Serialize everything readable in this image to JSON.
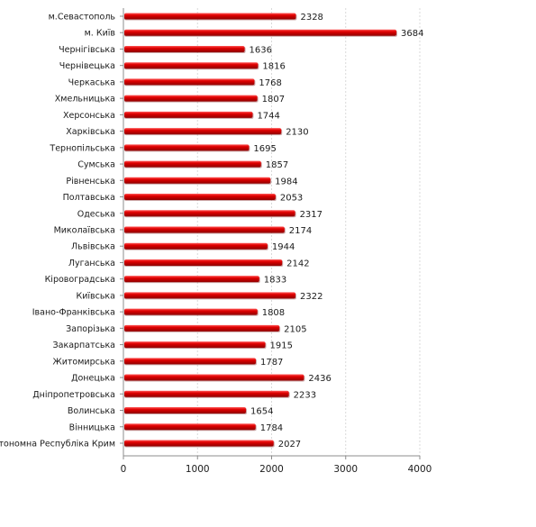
{
  "chart_data": {
    "type": "bar",
    "orientation": "horizontal",
    "categories": [
      "м.Севастополь",
      "м. Київ",
      "Чернігівська",
      "Чернівецька",
      "Черкаська",
      "Хмельницька",
      "Херсонська",
      "Харківська",
      "Тернопільська",
      "Сумська",
      "Рівненська",
      "Полтавська",
      "Одеська",
      "Миколаївська",
      "Львівська",
      "Луганська",
      "Кіровоградська",
      "Київська",
      "Івано-Франківська",
      "Запорізька",
      "Закарпатська",
      "Житомирська",
      "Донецька",
      "Дніпропетровська",
      "Волинська",
      "Вінницька",
      "Автономна Республіка Крим"
    ],
    "values": [
      2328,
      3684,
      1636,
      1816,
      1768,
      1807,
      1744,
      2130,
      1695,
      1857,
      1984,
      2053,
      2317,
      2174,
      1944,
      2142,
      1833,
      2322,
      1808,
      2105,
      1915,
      1787,
      2436,
      2233,
      1654,
      1784,
      2027
    ],
    "xlim": [
      0,
      4000
    ],
    "xticks": [
      "0",
      "1000",
      "2000",
      "3000",
      "4000"
    ],
    "grid": true,
    "legend": "none",
    "colors": {
      "bar": "#e00000",
      "bar_dark": "#8f0000",
      "bar_light": "#ff5a5a"
    }
  }
}
